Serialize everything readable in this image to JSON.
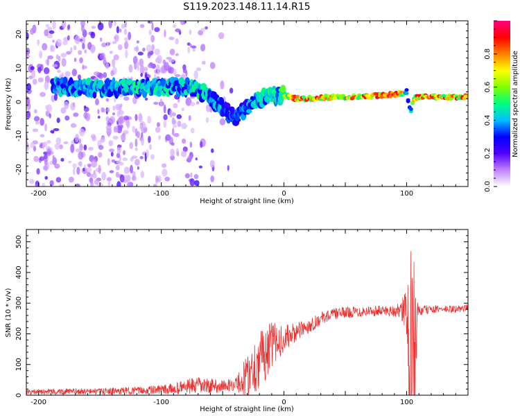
{
  "title": "S119.2023.148.11.14.R15",
  "chart_data": [
    {
      "type": "heatmap",
      "title": "S119.2023.148.11.14.R15",
      "xlabel": "Height of straight line (km)",
      "ylabel": "Frequency (Hz)",
      "xlim": [
        -210,
        150
      ],
      "ylim": [
        -25,
        24
      ],
      "xticks": [
        -200,
        -100,
        0,
        100
      ],
      "yticks": [
        -20,
        -10,
        0,
        10,
        20
      ],
      "grid": false,
      "colorbar": {
        "label": "Normalized spectral amplitude",
        "range": [
          0,
          1
        ],
        "ticks": [
          "0.0",
          "0.2",
          "0.4",
          "0.6",
          "0.8"
        ],
        "colors": [
          "#ffffff",
          "#c080ff",
          "#5000ff",
          "#0000ff",
          "#00c0ff",
          "#00ff80",
          "#80ff00",
          "#ffff00",
          "#ff8000",
          "#ff0000",
          "#ff0080"
        ]
      },
      "ridge": {
        "description_points_x": [
          -185,
          -160,
          -140,
          -120,
          -100,
          -85,
          -75,
          -65,
          -55,
          -45,
          -38,
          -30,
          -20,
          -10,
          0,
          10,
          20,
          40,
          60,
          80,
          95,
          100,
          103,
          106,
          110,
          130,
          150
        ],
        "description_points_y": [
          4.5,
          4.0,
          4.0,
          4.0,
          4.5,
          4.5,
          4.0,
          2.5,
          0,
          -3.5,
          -4.5,
          -1.5,
          1.0,
          2.0,
          2.0,
          1.0,
          1.0,
          1.5,
          1.5,
          2.0,
          2.5,
          3.0,
          -3,
          1.0,
          1.5,
          1.5,
          1.5
        ],
        "peak_amplitude": [
          0.45,
          0.45,
          0.45,
          0.5,
          0.5,
          0.45,
          0.5,
          0.5,
          0.45,
          0.4,
          0.35,
          0.4,
          0.5,
          0.55,
          0.6,
          0.9,
          0.9,
          0.85,
          0.85,
          0.9,
          0.95,
          0.5,
          0.4,
          0.85,
          0.9,
          0.9,
          0.9
        ]
      }
    },
    {
      "type": "line",
      "xlabel": "Height of straight line (km)",
      "ylabel": "SNR (10 * v/v)",
      "xlim": [
        -210,
        150
      ],
      "ylim": [
        0,
        540
      ],
      "xticks": [
        -200,
        -100,
        0,
        100
      ],
      "yticks": [
        0,
        100,
        200,
        300,
        400,
        500
      ],
      "color": "#ee3030",
      "grid": false,
      "envelope": {
        "x": [
          -210,
          -180,
          -150,
          -120,
          -100,
          -90,
          -80,
          -70,
          -60,
          -50,
          -40,
          -35,
          -30,
          -25,
          -20,
          -15,
          -10,
          -5,
          0,
          10,
          20,
          30,
          40,
          50,
          60,
          70,
          80,
          90,
          95,
          100,
          102,
          104,
          106,
          108,
          110,
          120,
          130,
          140,
          150
        ],
        "base": [
          10,
          12,
          12,
          15,
          18,
          20,
          28,
          30,
          30,
          30,
          35,
          45,
          60,
          90,
          115,
          140,
          160,
          175,
          185,
          205,
          225,
          250,
          265,
          270,
          272,
          275,
          275,
          275,
          275,
          270,
          160,
          120,
          140,
          200,
          275,
          280,
          280,
          280,
          285
        ],
        "amplitude": [
          8,
          10,
          10,
          12,
          15,
          18,
          25,
          28,
          25,
          20,
          20,
          45,
          80,
          90,
          95,
          90,
          80,
          60,
          45,
          30,
          25,
          20,
          18,
          18,
          18,
          18,
          18,
          20,
          25,
          90,
          200,
          260,
          220,
          120,
          20,
          12,
          12,
          12,
          12
        ]
      }
    }
  ]
}
